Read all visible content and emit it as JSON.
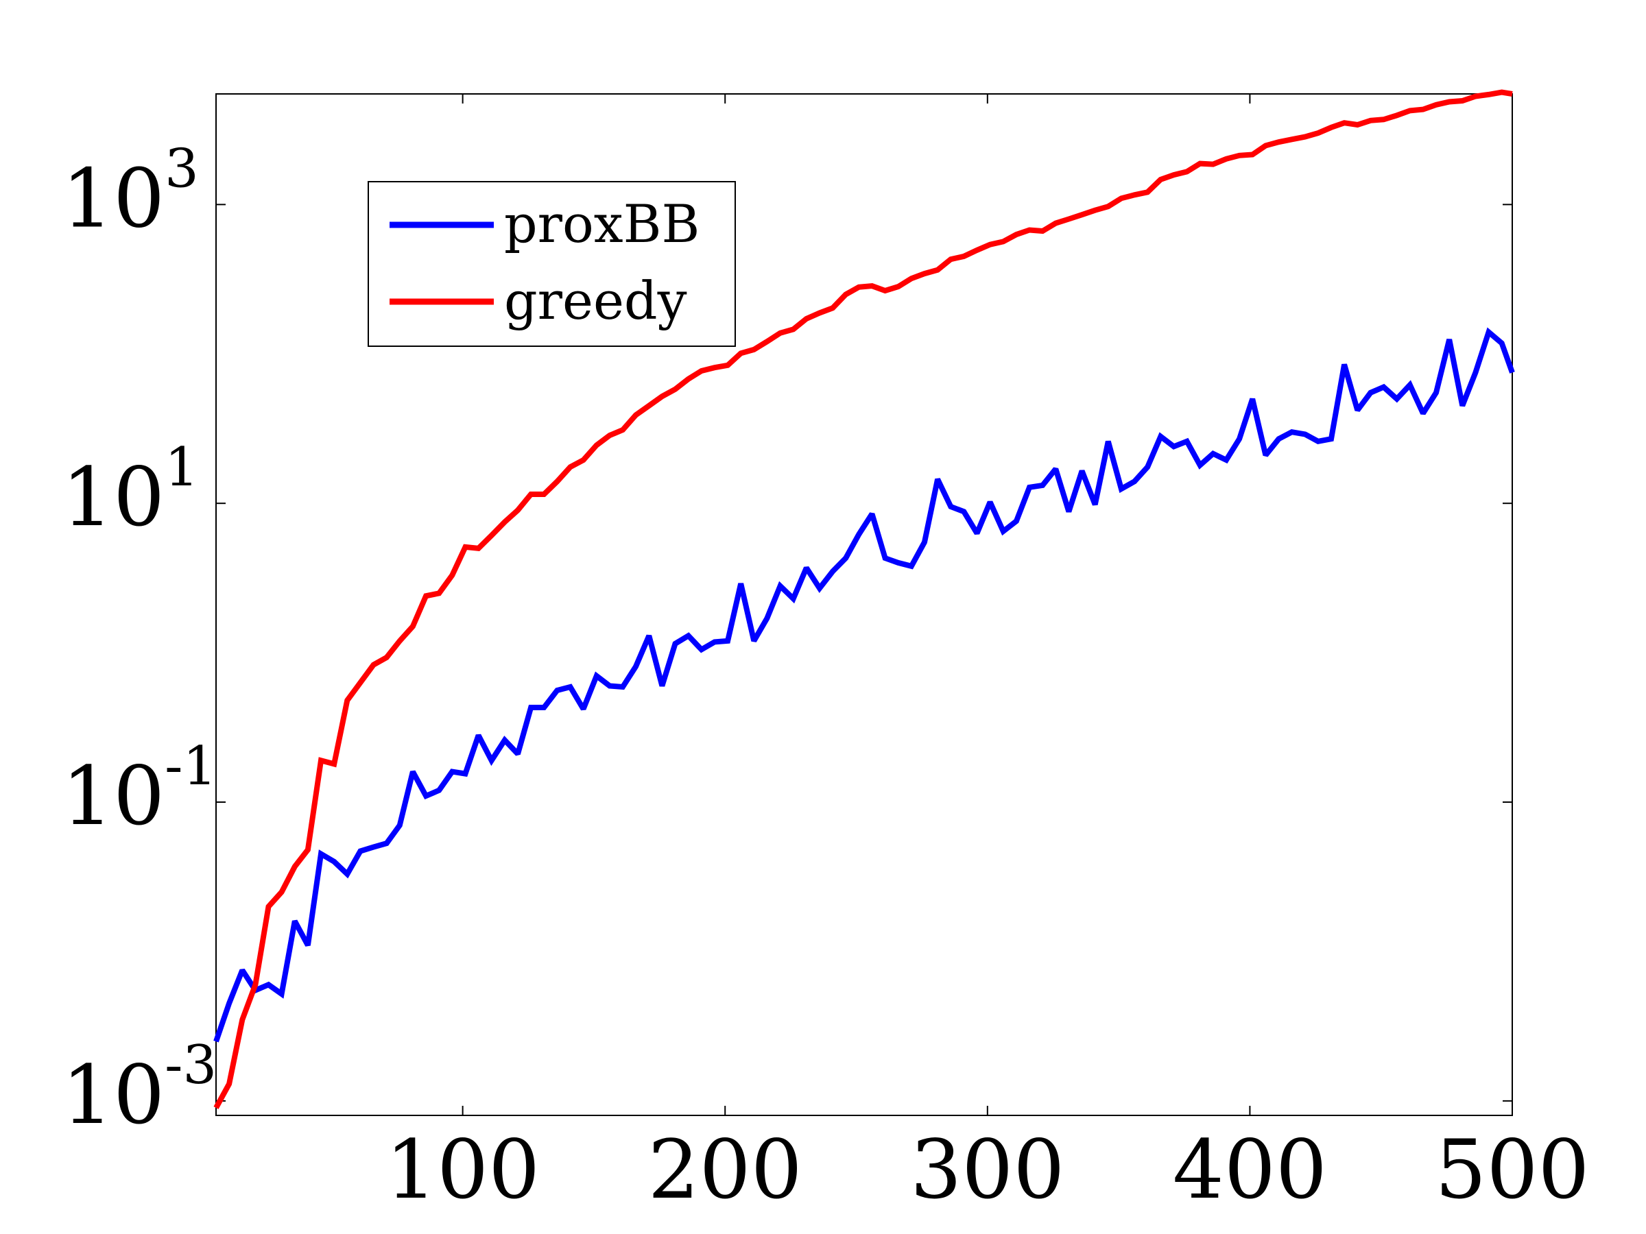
{
  "chart_data": {
    "type": "line",
    "title": "",
    "xlabel": "",
    "ylabel": "",
    "xlim": [
      6,
      500
    ],
    "ylim": [
      0.0008,
      5500
    ],
    "yscale": "log",
    "grid": false,
    "legend_position": "top-left",
    "x_ticks": [
      {
        "value": 100,
        "label": "100"
      },
      {
        "value": 200,
        "label": "200"
      },
      {
        "value": 300,
        "label": "300"
      },
      {
        "value": 400,
        "label": "400"
      },
      {
        "value": 500,
        "label": "500"
      }
    ],
    "y_ticks": [
      {
        "value": 0.001,
        "base": "10",
        "exp": "-3"
      },
      {
        "value": 0.1,
        "base": "10",
        "exp": "-1"
      },
      {
        "value": 10,
        "base": "10",
        "exp": "1"
      },
      {
        "value": 1000,
        "base": "10",
        "exp": "3"
      }
    ],
    "series": [
      {
        "name": "proxBB",
        "color": "#0000ff",
        "x": [
          6,
          11,
          16,
          21,
          26,
          31,
          36,
          41,
          46,
          51,
          56,
          61,
          66,
          71,
          76,
          81,
          86,
          91,
          96,
          101,
          106,
          111,
          116,
          121,
          126,
          131,
          136,
          141,
          146,
          151,
          156,
          161,
          166,
          171,
          176,
          181,
          186,
          191,
          196,
          201,
          206,
          211,
          216,
          221,
          226,
          231,
          236,
          241,
          246,
          251,
          256,
          261,
          266,
          271,
          276,
          281,
          286,
          291,
          296,
          301,
          306,
          311,
          316,
          321,
          326,
          331,
          336,
          341,
          346,
          351,
          356,
          361,
          366,
          371,
          376,
          381,
          386,
          391,
          396,
          401,
          406,
          411,
          416,
          421,
          426,
          431,
          436,
          441,
          446,
          451,
          456,
          461,
          466,
          471,
          476,
          481,
          486,
          491,
          496,
          500
        ],
        "y": [
          0.0025,
          0.0045,
          0.0075,
          0.0055,
          0.006,
          0.0052,
          0.016,
          0.011,
          0.045,
          0.04,
          0.033,
          0.047,
          0.05,
          0.053,
          0.07,
          0.16,
          0.11,
          0.12,
          0.16,
          0.155,
          0.28,
          0.19,
          0.26,
          0.21,
          0.43,
          0.43,
          0.56,
          0.59,
          0.42,
          0.7,
          0.6,
          0.59,
          0.81,
          1.3,
          0.6,
          1.15,
          1.3,
          1.05,
          1.18,
          1.2,
          2.9,
          1.2,
          1.7,
          2.8,
          2.3,
          3.7,
          2.7,
          3.5,
          4.3,
          6.2,
          8.5,
          4.3,
          4.0,
          3.8,
          5.5,
          14.5,
          9.5,
          8.8,
          6.3,
          10.2,
          6.5,
          7.6,
          12.8,
          13.2,
          17.0,
          8.8,
          16.5,
          9.8,
          26.0,
          12.5,
          14.0,
          17.5,
          28.0,
          24.0,
          26.0,
          18.0,
          21.5,
          19.5,
          27.0,
          50.0,
          21.0,
          27.0,
          30.0,
          29.0,
          26.0,
          27.0,
          85.0,
          42.0,
          55.0,
          60.0,
          50.0,
          62.0,
          40.0,
          55.0,
          125.0,
          45.0,
          75.0,
          140.0,
          118.0,
          75.0
        ]
      },
      {
        "name": "greedy",
        "color": "#ff0000",
        "x": [
          6,
          11,
          16,
          21,
          26,
          31,
          36,
          41,
          46,
          51,
          56,
          61,
          66,
          71,
          76,
          81,
          86,
          91,
          96,
          101,
          106,
          111,
          116,
          121,
          126,
          131,
          136,
          141,
          146,
          151,
          156,
          161,
          166,
          171,
          176,
          181,
          186,
          191,
          196,
          201,
          206,
          211,
          216,
          221,
          226,
          231,
          236,
          241,
          246,
          251,
          256,
          261,
          266,
          271,
          276,
          281,
          286,
          291,
          296,
          301,
          306,
          311,
          316,
          321,
          326,
          331,
          336,
          341,
          346,
          351,
          356,
          361,
          366,
          371,
          376,
          381,
          386,
          391,
          396,
          401,
          406,
          411,
          416,
          421,
          426,
          431,
          436,
          441,
          446,
          451,
          456,
          461,
          466,
          471,
          476,
          481,
          486,
          491,
          496,
          500
        ],
        "y": [
          0.0009,
          0.0013,
          0.0035,
          0.006,
          0.02,
          0.025,
          0.037,
          0.048,
          0.19,
          0.18,
          0.48,
          0.63,
          0.83,
          0.93,
          1.2,
          1.5,
          2.4,
          2.5,
          3.3,
          5.1,
          5.0,
          6.1,
          7.5,
          9.0,
          11.5,
          11.5,
          14.0,
          17.5,
          19.5,
          24.5,
          28.5,
          31.0,
          39.0,
          45.0,
          52.0,
          58.0,
          68.0,
          77.0,
          81.0,
          84.0,
          101.0,
          107.0,
          121.0,
          138.0,
          146.0,
          172.0,
          188.0,
          203.0,
          250.0,
          280.0,
          285.0,
          265.0,
          282.0,
          320.0,
          345.0,
          365.0,
          430.0,
          450.0,
          495.0,
          540.0,
          565.0,
          630.0,
          675.0,
          665.0,
          750.0,
          800.0,
          855.0,
          915.0,
          970.0,
          1100.0,
          1160.0,
          1210.0,
          1470.0,
          1580.0,
          1660.0,
          1880.0,
          1860.0,
          2020.0,
          2130.0,
          2160.0,
          2480.0,
          2620.0,
          2730.0,
          2840.0,
          3010.0,
          3280.0,
          3520.0,
          3420.0,
          3650.0,
          3710.0,
          3950.0,
          4250.0,
          4330.0,
          4650.0,
          4870.0,
          4950.0,
          5300.0,
          5450.0,
          5650.0,
          5500.0
        ]
      }
    ]
  }
}
